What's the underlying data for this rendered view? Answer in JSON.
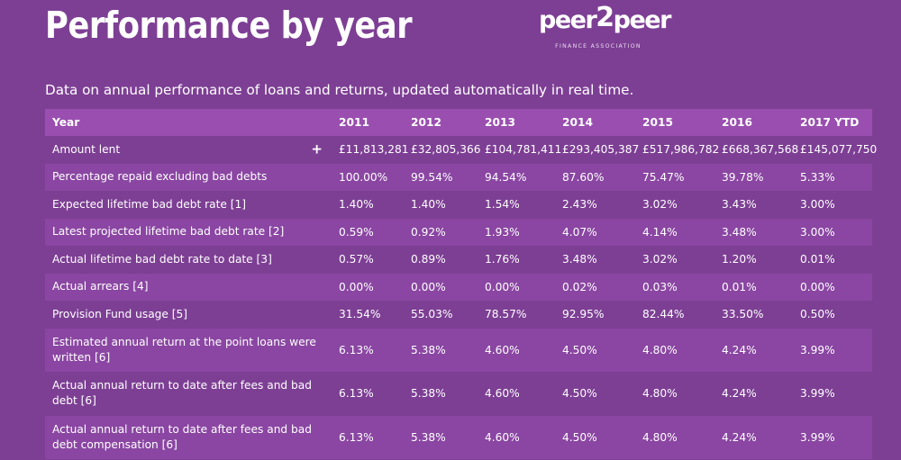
{
  "header": {
    "title": "Performance by year",
    "logo": {
      "word_left": "peer",
      "word_mid": "2",
      "word_right": "peer",
      "subtitle": "FINANCE ASSOCIATION"
    }
  },
  "intro": "Data on annual performance of loans and returns, updated automatically in real time.",
  "colors": {
    "background": "#7d3f94",
    "row_alt": "#8a46a2",
    "header_row": "#9a4fb0",
    "text": "#ffffff"
  },
  "icons": {
    "expand": "plus-icon"
  },
  "table": {
    "columns": [
      "Year",
      "2011",
      "2012",
      "2013",
      "2014",
      "2015",
      "2016",
      "2017 YTD"
    ],
    "rows": [
      {
        "label": "Amount lent",
        "expand_symbol": "+",
        "values": [
          "£11,813,281",
          "£32,805,366",
          "£104,781,411",
          "£293,405,387",
          "£517,986,782",
          "£668,367,568",
          "£145,077,750"
        ]
      },
      {
        "label": "Percentage repaid excluding bad debts",
        "values": [
          "100.00%",
          "99.54%",
          "94.54%",
          "87.60%",
          "75.47%",
          "39.78%",
          "5.33%"
        ]
      },
      {
        "label": "Expected lifetime bad debt rate [1]",
        "values": [
          "1.40%",
          "1.40%",
          "1.54%",
          "2.43%",
          "3.02%",
          "3.43%",
          "3.00%"
        ]
      },
      {
        "label": "Latest projected lifetime bad debt rate [2]",
        "values": [
          "0.59%",
          "0.92%",
          "1.93%",
          "4.07%",
          "4.14%",
          "3.48%",
          "3.00%"
        ]
      },
      {
        "label": "Actual lifetime bad debt rate to date [3]",
        "values": [
          "0.57%",
          "0.89%",
          "1.76%",
          "3.48%",
          "3.02%",
          "1.20%",
          "0.01%"
        ]
      },
      {
        "label": "Actual arrears [4]",
        "values": [
          "0.00%",
          "0.00%",
          "0.00%",
          "0.02%",
          "0.03%",
          "0.01%",
          "0.00%"
        ]
      },
      {
        "label": "Provision Fund usage [5]",
        "values": [
          "31.54%",
          "55.03%",
          "78.57%",
          "92.95%",
          "82.44%",
          "33.50%",
          "0.50%"
        ]
      },
      {
        "label": "Estimated annual return at the point loans were written [6]",
        "values": [
          "6.13%",
          "5.38%",
          "4.60%",
          "4.50%",
          "4.80%",
          "4.24%",
          "3.99%"
        ]
      },
      {
        "label": "Actual annual return to date after fees and bad debt [6]",
        "values": [
          "6.13%",
          "5.38%",
          "4.60%",
          "4.50%",
          "4.80%",
          "4.24%",
          "3.99%"
        ]
      },
      {
        "label": "Actual annual return to date after fees and bad debt compensation [6]",
        "values": [
          "6.13%",
          "5.38%",
          "4.60%",
          "4.50%",
          "4.80%",
          "4.24%",
          "3.99%"
        ]
      }
    ]
  }
}
